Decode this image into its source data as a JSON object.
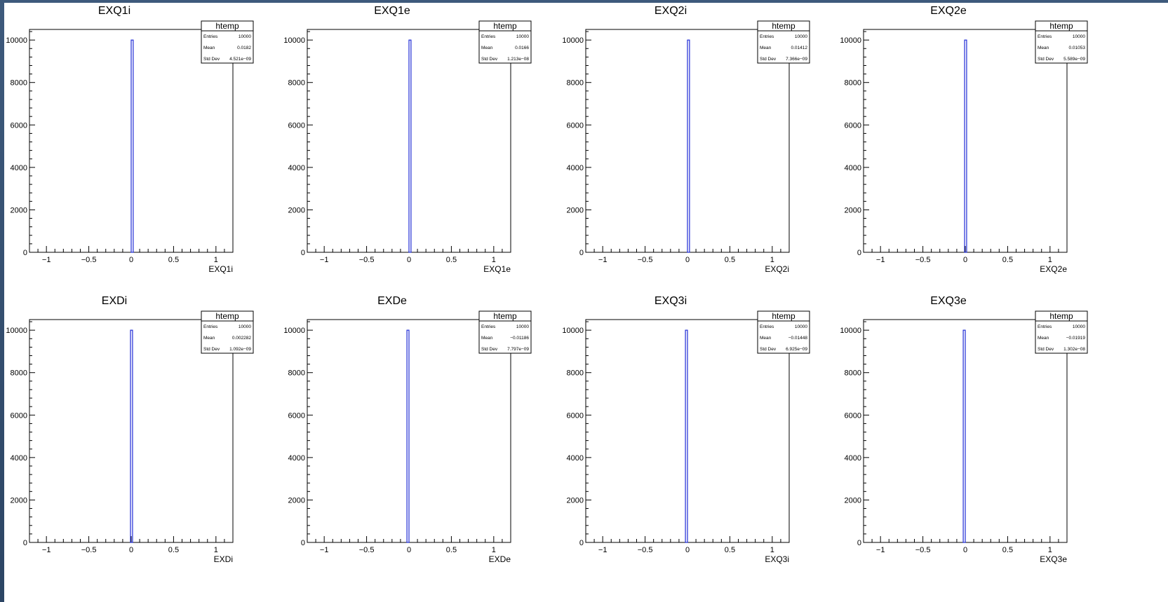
{
  "chart_data": [
    {
      "type": "histogram",
      "title": "EXQ1i",
      "xlabel": "EXQ1i",
      "ylabel": "",
      "xlim": [
        -1.2,
        1.2
      ],
      "ylim": [
        0,
        10500
      ],
      "xticks": [
        -1,
        -0.5,
        0,
        0.5,
        1
      ],
      "xtick_labels": [
        "−1",
        "−0.5",
        "0",
        "0.5",
        "1"
      ],
      "yticks": [
        0,
        2000,
        4000,
        6000,
        8000,
        10000
      ],
      "ytick_labels": [
        "0",
        "2000",
        "4000",
        "6000",
        "8000",
        "10000"
      ],
      "bins": [
        {
          "x_low": 0.0,
          "x_high": 0.024,
          "count": 10000
        }
      ],
      "stats": {
        "name": "htemp",
        "entries": "10000",
        "mean": "0.0182",
        "std_dev": "4.521e−09"
      },
      "line_color": "#1f2bd6",
      "grid": false,
      "legend_position": "top-right"
    },
    {
      "type": "histogram",
      "title": "EXQ1e",
      "xlabel": "EXQ1e",
      "ylabel": "",
      "xlim": [
        -1.2,
        1.2
      ],
      "ylim": [
        0,
        10500
      ],
      "xticks": [
        -1,
        -0.5,
        0,
        0.5,
        1
      ],
      "xtick_labels": [
        "−1",
        "−0.5",
        "0",
        "0.5",
        "1"
      ],
      "yticks": [
        0,
        2000,
        4000,
        6000,
        8000,
        10000
      ],
      "ytick_labels": [
        "0",
        "2000",
        "4000",
        "6000",
        "8000",
        "10000"
      ],
      "bins": [
        {
          "x_low": 0.0,
          "x_high": 0.024,
          "count": 10000
        }
      ],
      "stats": {
        "name": "htemp",
        "entries": "10000",
        "mean": "0.0166",
        "std_dev": "1.213e−08"
      },
      "line_color": "#1f2bd6",
      "grid": false,
      "legend_position": "top-right"
    },
    {
      "type": "histogram",
      "title": "EXQ2i",
      "xlabel": "EXQ2i",
      "ylabel": "",
      "xlim": [
        -1.2,
        1.2
      ],
      "ylim": [
        0,
        10500
      ],
      "xticks": [
        -1,
        -0.5,
        0,
        0.5,
        1
      ],
      "xtick_labels": [
        "−1",
        "−0.5",
        "0",
        "0.5",
        "1"
      ],
      "yticks": [
        0,
        2000,
        4000,
        6000,
        8000,
        10000
      ],
      "ytick_labels": [
        "0",
        "2000",
        "4000",
        "6000",
        "8000",
        "10000"
      ],
      "bins": [
        {
          "x_low": 0.0,
          "x_high": 0.024,
          "count": 10000
        }
      ],
      "stats": {
        "name": "htemp",
        "entries": "10000",
        "mean": "0.01412",
        "std_dev": "7.366e−09"
      },
      "line_color": "#1f2bd6",
      "grid": false,
      "legend_position": "top-right"
    },
    {
      "type": "histogram",
      "title": "EXQ2e",
      "xlabel": "EXQ2e",
      "ylabel": "",
      "xlim": [
        -1.2,
        1.2
      ],
      "ylim": [
        0,
        10500
      ],
      "xticks": [
        -1,
        -0.5,
        0,
        0.5,
        1
      ],
      "xtick_labels": [
        "−1",
        "−0.5",
        "0",
        "0.5",
        "1"
      ],
      "yticks": [
        0,
        2000,
        4000,
        6000,
        8000,
        10000
      ],
      "ytick_labels": [
        "0",
        "2000",
        "4000",
        "6000",
        "8000",
        "10000"
      ],
      "bins": [
        {
          "x_low": -0.008,
          "x_high": 0.016,
          "count": 10000
        }
      ],
      "stats": {
        "name": "htemp",
        "entries": "10000",
        "mean": "0.01053",
        "std_dev": "5.589e−09"
      },
      "line_color": "#1f2bd6",
      "grid": false,
      "legend_position": "top-right"
    },
    {
      "type": "histogram",
      "title": "EXDi",
      "xlabel": "EXDi",
      "ylabel": "",
      "xlim": [
        -1.2,
        1.2
      ],
      "ylim": [
        0,
        10500
      ],
      "xticks": [
        -1,
        -0.5,
        0,
        0.5,
        1
      ],
      "xtick_labels": [
        "−1",
        "−0.5",
        "0",
        "0.5",
        "1"
      ],
      "yticks": [
        0,
        2000,
        4000,
        6000,
        8000,
        10000
      ],
      "ytick_labels": [
        "0",
        "2000",
        "4000",
        "6000",
        "8000",
        "10000"
      ],
      "bins": [
        {
          "x_low": -0.008,
          "x_high": 0.016,
          "count": 10000
        }
      ],
      "stats": {
        "name": "htemp",
        "entries": "10000",
        "mean": "0.002282",
        "std_dev": "1.092e−09"
      },
      "line_color": "#1f2bd6",
      "grid": false,
      "legend_position": "top-right"
    },
    {
      "type": "histogram",
      "title": "EXDe",
      "xlabel": "EXDe",
      "ylabel": "",
      "xlim": [
        -1.2,
        1.2
      ],
      "ylim": [
        0,
        10500
      ],
      "xticks": [
        -1,
        -0.5,
        0,
        0.5,
        1
      ],
      "xtick_labels": [
        "−1",
        "−0.5",
        "0",
        "0.5",
        "1"
      ],
      "yticks": [
        0,
        2000,
        4000,
        6000,
        8000,
        10000
      ],
      "ytick_labels": [
        "0",
        "2000",
        "4000",
        "6000",
        "8000",
        "10000"
      ],
      "bins": [
        {
          "x_low": -0.024,
          "x_high": 0.0,
          "count": 10000
        }
      ],
      "stats": {
        "name": "htemp",
        "entries": "10000",
        "mean": "−0.01186",
        "std_dev": "7.797e−09"
      },
      "line_color": "#1f2bd6",
      "grid": false,
      "legend_position": "top-right"
    },
    {
      "type": "histogram",
      "title": "EXQ3i",
      "xlabel": "EXQ3i",
      "ylabel": "",
      "xlim": [
        -1.2,
        1.2
      ],
      "ylim": [
        0,
        10500
      ],
      "xticks": [
        -1,
        -0.5,
        0,
        0.5,
        1
      ],
      "xtick_labels": [
        "−1",
        "−0.5",
        "0",
        "0.5",
        "1"
      ],
      "yticks": [
        0,
        2000,
        4000,
        6000,
        8000,
        10000
      ],
      "ytick_labels": [
        "0",
        "2000",
        "4000",
        "6000",
        "8000",
        "10000"
      ],
      "bins": [
        {
          "x_low": -0.024,
          "x_high": 0.0,
          "count": 10000
        }
      ],
      "stats": {
        "name": "htemp",
        "entries": "10000",
        "mean": "−0.01448",
        "std_dev": "6.925e−09"
      },
      "line_color": "#1f2bd6",
      "grid": false,
      "legend_position": "top-right"
    },
    {
      "type": "histogram",
      "title": "EXQ3e",
      "xlabel": "EXQ3e",
      "ylabel": "",
      "xlim": [
        -1.2,
        1.2
      ],
      "ylim": [
        0,
        10500
      ],
      "xticks": [
        -1,
        -0.5,
        0,
        0.5,
        1
      ],
      "xtick_labels": [
        "−1",
        "−0.5",
        "0",
        "0.5",
        "1"
      ],
      "yticks": [
        0,
        2000,
        4000,
        6000,
        8000,
        10000
      ],
      "ytick_labels": [
        "0",
        "2000",
        "4000",
        "6000",
        "8000",
        "10000"
      ],
      "bins": [
        {
          "x_low": -0.024,
          "x_high": 0.0,
          "count": 10000
        }
      ],
      "stats": {
        "name": "htemp",
        "entries": "10000",
        "mean": "−0.01919",
        "std_dev": "1.302e−08"
      },
      "line_color": "#1f2bd6",
      "grid": false,
      "legend_position": "top-right"
    }
  ]
}
